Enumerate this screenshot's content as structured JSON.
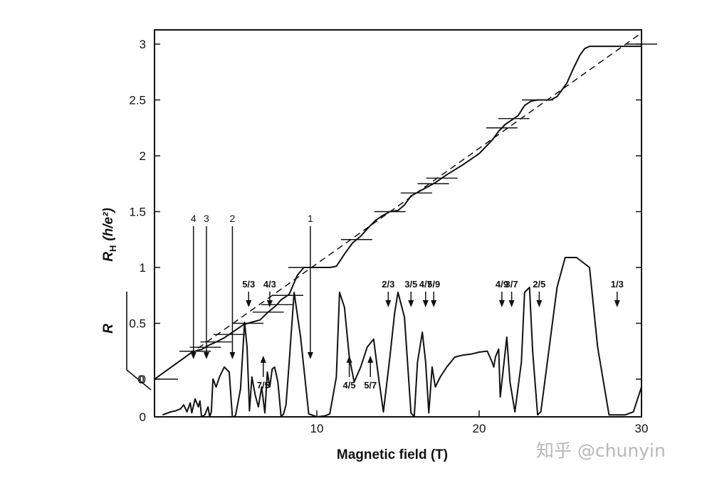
{
  "chart_data": {
    "type": "line",
    "xlabel": "Magnetic field (T)",
    "ylabel_hall_main": "R",
    "ylabel_hall_sub": "H",
    "ylabel_hall_unit": "(h/e²)",
    "ylabel_r": "R",
    "xlim": [
      0,
      30
    ],
    "ylim_hall": [
      0,
      3.1
    ],
    "x_ticks": [
      10,
      20,
      30
    ],
    "y_ticks": [
      0,
      0.5,
      1,
      1.5,
      2,
      2.5,
      3
    ],
    "y_tick_labels": [
      "0",
      "0.5",
      "1",
      "1.5",
      "2",
      "2.5",
      "3"
    ],
    "r_axis_zero_label": "0",
    "grid": false,
    "legend": "none",
    "series": [
      {
        "role": "hall_resistance",
        "x": [
          0,
          2.3,
          2.7,
          2.9,
          3.3,
          3.9,
          4.3,
          5.0,
          5.5,
          6.0,
          6.5,
          7.0,
          7.5,
          7.8,
          8.3,
          8.8,
          9.2,
          10,
          10.8,
          11.2,
          11.7,
          12.2,
          12.7,
          13.2,
          13.6,
          14.0,
          14.5,
          15.0,
          15.4,
          15.8,
          16.3,
          16.8,
          17.3,
          18.0,
          19.0,
          20.0,
          20.8,
          21.2,
          21.6,
          22.0,
          22.4,
          22.8,
          23.2,
          23.6,
          24.0,
          24.4,
          24.8,
          25.4,
          25.8,
          26.2,
          26.5,
          26.8,
          27.2,
          28.0,
          29.0,
          30.0
        ],
        "y": [
          0,
          0.24,
          0.26,
          0.265,
          0.3,
          0.34,
          0.37,
          0.44,
          0.49,
          0.51,
          0.53,
          0.6,
          0.66,
          0.71,
          0.76,
          0.93,
          1.0,
          1.0,
          1.0,
          1.01,
          1.12,
          1.22,
          1.28,
          1.36,
          1.42,
          1.46,
          1.5,
          1.51,
          1.56,
          1.64,
          1.68,
          1.72,
          1.76,
          1.83,
          1.92,
          2.02,
          2.14,
          2.22,
          2.28,
          2.32,
          2.36,
          2.45,
          2.49,
          2.5,
          2.5,
          2.5,
          2.53,
          2.65,
          2.78,
          2.9,
          2.96,
          2.98,
          2.98,
          2.98,
          2.98,
          2.98
        ]
      },
      {
        "role": "classical_hall_line_dashed",
        "x": [
          0,
          30
        ],
        "y": [
          0,
          3.1
        ]
      },
      {
        "role": "longitudinal_resistance",
        "x": [
          0.5,
          1.0,
          1.3,
          1.6,
          1.8,
          2.0,
          2.2,
          2.3,
          2.5,
          2.7,
          2.8,
          2.9,
          3.1,
          3.3,
          3.4,
          3.5,
          3.6,
          3.8,
          4.0,
          4.3,
          4.6,
          4.8,
          4.9,
          5.0,
          5.3,
          5.55,
          5.7,
          5.85,
          6.0,
          6.2,
          6.4,
          6.6,
          6.8,
          6.95,
          7.1,
          7.25,
          7.4,
          7.6,
          7.8,
          7.95,
          8.1,
          8.3,
          8.6,
          9.0,
          9.5,
          10.0,
          10.5,
          10.8,
          11.2,
          11.4,
          11.7,
          12.0,
          12.3,
          12.7,
          13.1,
          13.5,
          13.8,
          14.1,
          14.5,
          14.8,
          15.0,
          15.4,
          15.8,
          16.0,
          16.2,
          16.5,
          16.7,
          16.9,
          17.1,
          17.3,
          17.6,
          18.0,
          18.5,
          19.0,
          19.5,
          20.0,
          20.5,
          20.8,
          20.9,
          21.0,
          21.2,
          21.3,
          21.5,
          21.7,
          21.9,
          22.2,
          22.6,
          22.8,
          23.1,
          23.3,
          23.6,
          23.8,
          24.0,
          24.4,
          24.8,
          25.3,
          26.0,
          26.8,
          27.3,
          28.0,
          29.0,
          29.5,
          30.0
        ],
        "y": [
          0.02,
          0.05,
          0.06,
          0.08,
          0.12,
          0.05,
          0.14,
          0.04,
          0.18,
          0.1,
          0.16,
          0.0,
          0.02,
          0.1,
          0.0,
          0.05,
          0.38,
          0.3,
          0.4,
          0.5,
          0.45,
          0.0,
          0.0,
          0.02,
          0.28,
          0.95,
          0.7,
          0.06,
          0.4,
          0.22,
          0.1,
          0.3,
          0.04,
          0.45,
          0.3,
          0.48,
          0.5,
          0.35,
          0.0,
          0.03,
          0.12,
          0.55,
          1.25,
          0.8,
          0.03,
          0.0,
          0.01,
          0.03,
          0.4,
          1.25,
          1.1,
          0.6,
          0.35,
          0.5,
          0.7,
          0.78,
          0.4,
          0.05,
          0.6,
          1.05,
          1.25,
          1.0,
          0.04,
          0.0,
          0.55,
          0.85,
          0.55,
          0.04,
          0.5,
          0.3,
          0.4,
          0.5,
          0.6,
          0.62,
          0.63,
          0.65,
          0.66,
          0.55,
          0.5,
          0.6,
          0.68,
          0.2,
          0.5,
          0.8,
          0.35,
          0.05,
          0.55,
          1.25,
          1.3,
          0.65,
          0.02,
          0.05,
          0.3,
          0.8,
          1.3,
          1.6,
          1.6,
          1.5,
          0.7,
          0.02,
          0.02,
          0.05,
          0.3
        ]
      }
    ],
    "plateau_marks": [
      0.25,
      0.2857,
      0.333,
      0.4,
      0.5,
      0.6,
      0.6667,
      0.75,
      1.0,
      1.25,
      1.5,
      1.6667,
      1.75,
      1.8,
      2.25,
      2.3333,
      2.5,
      3.0
    ],
    "annotations": [
      {
        "label": "4",
        "x": 2.4,
        "dir": "down"
      },
      {
        "label": "3",
        "x": 3.2,
        "dir": "down"
      },
      {
        "label": "2",
        "x": 4.8,
        "dir": "down"
      },
      {
        "label": "1",
        "x": 9.6,
        "dir": "down"
      },
      {
        "label": "5/3",
        "x": 5.8,
        "dir": "down"
      },
      {
        "label": "4/3",
        "x": 7.1,
        "dir": "down"
      },
      {
        "label": "7/5",
        "x": 6.7,
        "dir": "up"
      },
      {
        "label": "2/3",
        "x": 14.4,
        "dir": "down"
      },
      {
        "label": "3/5",
        "x": 15.8,
        "dir": "down"
      },
      {
        "label": "4/7",
        "x": 16.7,
        "dir": "down"
      },
      {
        "label": "5/9",
        "x": 17.2,
        "dir": "down"
      },
      {
        "label": "4/5",
        "x": 12.0,
        "dir": "up"
      },
      {
        "label": "5/7",
        "x": 13.3,
        "dir": "up"
      },
      {
        "label": "4/9",
        "x": 21.4,
        "dir": "down"
      },
      {
        "label": "3/7",
        "x": 22.0,
        "dir": "down"
      },
      {
        "label": "2/5",
        "x": 23.7,
        "dir": "down"
      },
      {
        "label": "1/3",
        "x": 28.5,
        "dir": "down"
      }
    ]
  },
  "watermark": "知乎 @chunyin"
}
